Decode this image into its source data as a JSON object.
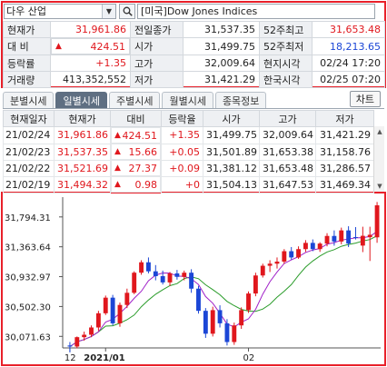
{
  "search": {
    "stock_name": "다우 산업",
    "index_full_name": "[미국]Dow Jones Indices"
  },
  "quote": {
    "rows": [
      [
        {
          "label": "현재가",
          "value": "31,961.86",
          "color": "red"
        },
        {
          "label": "전일종가",
          "value": "31,537.35",
          "color": "default"
        },
        {
          "label": "52주최고",
          "value": "31,653.48",
          "color": "red"
        }
      ],
      [
        {
          "label": "대 비",
          "value": "424.51",
          "color": "red",
          "arrow": "▲"
        },
        {
          "label": "시가",
          "value": "31,499.75",
          "color": "default"
        },
        {
          "label": "52주최저",
          "value": "18,213.65",
          "color": "blue"
        }
      ],
      [
        {
          "label": "등락률",
          "value": "+1.35",
          "color": "red"
        },
        {
          "label": "고가",
          "value": "32,009.64",
          "color": "default"
        },
        {
          "label": "현지시각",
          "value": "02/24 17:20",
          "color": "default"
        }
      ],
      [
        {
          "label": "거래량",
          "value": "413,352,552",
          "color": "default"
        },
        {
          "label": "저가",
          "value": "31,421.29",
          "color": "default"
        },
        {
          "label": "한국시각",
          "value": "02/25 07:20",
          "color": "default"
        }
      ]
    ]
  },
  "tabs": [
    {
      "label": "분별시세",
      "active": false
    },
    {
      "label": "일별시세",
      "active": true
    },
    {
      "label": "주별시세",
      "active": false
    },
    {
      "label": "월별시세",
      "active": false
    },
    {
      "label": "종목정보",
      "active": false
    }
  ],
  "chart_button": "차트",
  "daily": {
    "headers": [
      "현재일자",
      "현재가",
      "대비",
      "등락율",
      "시가",
      "고가",
      "저가"
    ],
    "rows": [
      {
        "date": "21/02/24",
        "close": "31,961.86",
        "arrow": "▲",
        "change": "424.51",
        "rate": "+1.35",
        "open": "31,499.75",
        "high": "32,009.64",
        "low": "31,421.29"
      },
      {
        "date": "21/02/23",
        "close": "31,537.35",
        "arrow": "▲",
        "change": "15.66",
        "rate": "+0.05",
        "open": "31,501.89",
        "high": "31,653.38",
        "low": "31,158.76"
      },
      {
        "date": "21/02/22",
        "close": "31,521.69",
        "arrow": "▲",
        "change": "27.37",
        "rate": "+0.09",
        "open": "31,381.12",
        "high": "31,653.48",
        "low": "31,286.57"
      },
      {
        "date": "21/02/19",
        "close": "31,494.32",
        "arrow": "▲",
        "change": "0.98",
        "rate": "+0",
        "open": "31,504.13",
        "high": "31,647.53",
        "low": "31,469.34"
      }
    ]
  },
  "chart_data": {
    "type": "candlestick",
    "y_ticks": [
      "31,794.31",
      "31,363.64",
      "30,932.97",
      "30,502.30",
      "30,071.63"
    ],
    "y_tick_values": [
      31794.31,
      31363.64,
      30932.97,
      30502.3,
      30071.63
    ],
    "ylim": [
      29905,
      32080
    ],
    "x_labels": [
      {
        "text": "12",
        "index": 0,
        "bold": false
      },
      {
        "text": "2021/01",
        "index": 5,
        "bold": true
      },
      {
        "text": "02",
        "index": 25,
        "bold": false
      }
    ],
    "up_color": "#e0171d",
    "down_color": "#1b46d6",
    "ma_short_color": "#a020c8",
    "ma_long_color": "#2a9c2a",
    "candles": [
      [
        29940,
        29990,
        29840,
        29925
      ],
      [
        29925,
        30070,
        29900,
        30060
      ],
      [
        30060,
        30140,
        30010,
        30095
      ],
      [
        30095,
        30230,
        30060,
        30200
      ],
      [
        30200,
        30440,
        30150,
        30405
      ],
      [
        30405,
        30660,
        30380,
        30630
      ],
      [
        30630,
        30670,
        30230,
        30260
      ],
      [
        30260,
        30560,
        30210,
        30525
      ],
      [
        30525,
        30760,
        30480,
        30700
      ],
      [
        30700,
        31010,
        30680,
        30990
      ],
      [
        30990,
        31170,
        30960,
        31140
      ],
      [
        31140,
        31210,
        30980,
        31010
      ],
      [
        31010,
        31100,
        30880,
        30940
      ],
      [
        30940,
        31020,
        30820,
        30850
      ],
      [
        30850,
        31000,
        30800,
        30980
      ],
      [
        30980,
        31030,
        30890,
        30930
      ],
      [
        30930,
        31020,
        30880,
        30990
      ],
      [
        30990,
        31040,
        30700,
        30760
      ],
      [
        30760,
        30800,
        30400,
        30440
      ],
      [
        30440,
        30480,
        30050,
        30110
      ],
      [
        30110,
        30500,
        30070,
        30450
      ],
      [
        30450,
        30520,
        30200,
        30260
      ],
      [
        30260,
        30320,
        29940,
        29990
      ],
      [
        29990,
        30270,
        29950,
        30230
      ],
      [
        30230,
        30490,
        30180,
        30450
      ],
      [
        30450,
        30720,
        30410,
        30690
      ],
      [
        30690,
        30990,
        30650,
        30950
      ],
      [
        30950,
        31120,
        30920,
        31090
      ],
      [
        31090,
        31170,
        31000,
        31120
      ],
      [
        31120,
        31210,
        31050,
        31150
      ],
      [
        31150,
        31330,
        31120,
        31300
      ],
      [
        31300,
        31360,
        31180,
        31210
      ],
      [
        31210,
        31370,
        31190,
        31330
      ],
      [
        31330,
        31460,
        31290,
        31420
      ],
      [
        31420,
        31470,
        31300,
        31330
      ],
      [
        31330,
        31430,
        31290,
        31410
      ],
      [
        31410,
        31560,
        31370,
        31520
      ],
      [
        31520,
        31600,
        31380,
        31440
      ],
      [
        31440,
        31640,
        31400,
        31600
      ],
      [
        31600,
        31660,
        31360,
        31410
      ],
      [
        31504,
        31648,
        31469,
        31494
      ],
      [
        31381,
        31653,
        31287,
        31522
      ],
      [
        31502,
        31653,
        31159,
        31537
      ],
      [
        31500,
        32010,
        31421,
        31962
      ]
    ]
  }
}
